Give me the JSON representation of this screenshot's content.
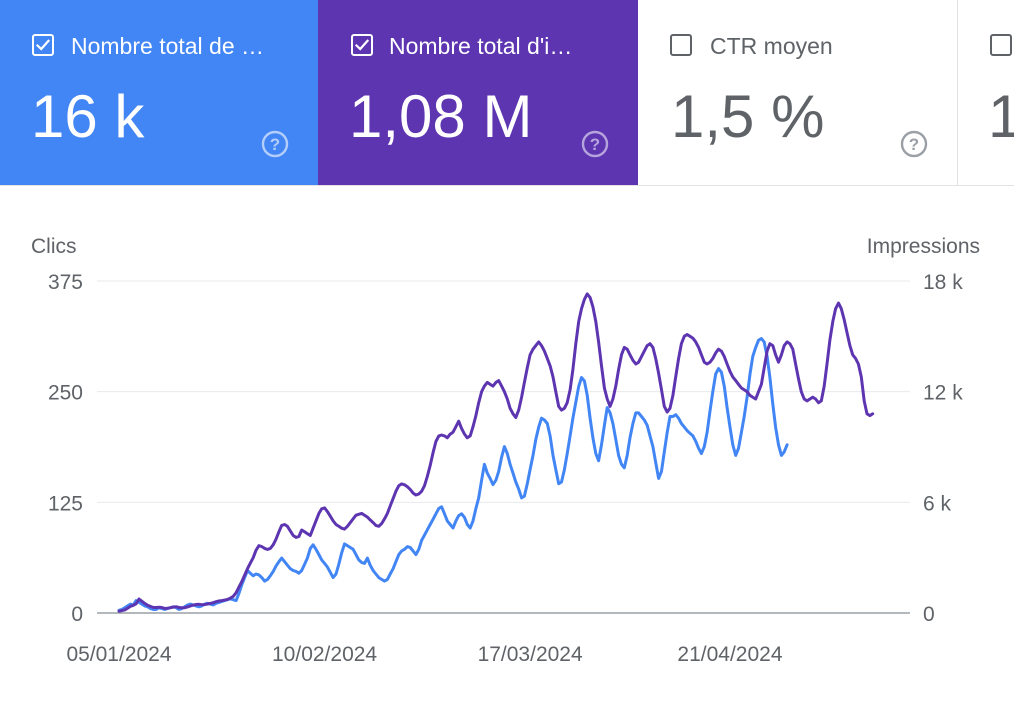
{
  "cards": [
    {
      "id": "clicks",
      "label": "Nombre total de …",
      "value": "16 k",
      "checked": true,
      "color": "#4285f4"
    },
    {
      "id": "impressions",
      "label": "Nombre total d'i…",
      "value": "1,08 M",
      "checked": true,
      "color": "#5e35b1"
    },
    {
      "id": "ctr",
      "label": "CTR moyen",
      "value": "1,5 %",
      "checked": false,
      "color": "#ffffff"
    },
    {
      "id": "position",
      "label": "",
      "value": "1",
      "checked": false,
      "color": "#ffffff"
    }
  ],
  "chart_data": {
    "type": "line",
    "left_axis_title": "Clics",
    "right_axis_title": "Impressions",
    "y_left": {
      "range": [
        0,
        375
      ],
      "ticks": [
        "0",
        "125",
        "250",
        "375"
      ],
      "tick_values": [
        0,
        125,
        250,
        375
      ]
    },
    "y_right": {
      "range": [
        0,
        18000
      ],
      "ticks": [
        "0",
        "6 k",
        "12 k",
        "18 k"
      ],
      "tick_values": [
        0,
        6000,
        12000,
        18000
      ]
    },
    "x_ticks": [
      {
        "label": "05/01/2024",
        "index": 0
      },
      {
        "label": "10/02/2024",
        "index": 36
      },
      {
        "label": "17/03/2024",
        "index": 72
      },
      {
        "label": "21/04/2024",
        "index": 107
      }
    ],
    "grid": true,
    "series": [
      {
        "axis": "left",
        "color": "#4285f4",
        "values": [
          3,
          4,
          6,
          8,
          10,
          9,
          14,
          12,
          10,
          8,
          7,
          5,
          4,
          4,
          6,
          5,
          4,
          5,
          6,
          7,
          6,
          4,
          5,
          7,
          9,
          10,
          9,
          8,
          7,
          8,
          10,
          11,
          10,
          9,
          11,
          12,
          13,
          14,
          15,
          16,
          15,
          14,
          22,
          32,
          40,
          48,
          45,
          42,
          44,
          43,
          40,
          36,
          38,
          42,
          47,
          53,
          58,
          62,
          58,
          54,
          50,
          48,
          47,
          45,
          48,
          55,
          62,
          73,
          77,
          72,
          66,
          60,
          56,
          52,
          46,
          40,
          44,
          55,
          68,
          78,
          76,
          74,
          72,
          66,
          60,
          57,
          56,
          62,
          54,
          48,
          44,
          40,
          38,
          36,
          38,
          44,
          50,
          58,
          66,
          70,
          72,
          75,
          74,
          70,
          66,
          72,
          82,
          88,
          94,
          100,
          106,
          112,
          118,
          120,
          112,
          104,
          100,
          96,
          104,
          110,
          112,
          108,
          100,
          96,
          104,
          118,
          130,
          150,
          168,
          158,
          152,
          145,
          150,
          160,
          176,
          188,
          180,
          168,
          158,
          148,
          140,
          130,
          132,
          146,
          162,
          178,
          196,
          210,
          220,
          218,
          214,
          200,
          178,
          162,
          146,
          148,
          162,
          180,
          200,
          220,
          238,
          256,
          266,
          262,
          246,
          220,
          198,
          180,
          172,
          190,
          212,
          232,
          226,
          214,
          196,
          178,
          168,
          164,
          178,
          198,
          214,
          226,
          226,
          222,
          218,
          212,
          200,
          188,
          170,
          152,
          160,
          182,
          204,
          222,
          222,
          224,
          220,
          214,
          210,
          206,
          203,
          200,
          194,
          186,
          180,
          188,
          204,
          228,
          250,
          270,
          276,
          272,
          256,
          232,
          210,
          190,
          178,
          186,
          204,
          222,
          244,
          270,
          290,
          300,
          308,
          310,
          306,
          290,
          266,
          236,
          210,
          190,
          178,
          182,
          190
        ],
        "step": 0.5
      },
      {
        "axis": "right",
        "color": "#5e35b1",
        "values": [
          100,
          130,
          170,
          260,
          360,
          420,
          500,
          760,
          640,
          520,
          420,
          360,
          300,
          300,
          310,
          300,
          250,
          260,
          290,
          320,
          340,
          300,
          280,
          290,
          330,
          380,
          430,
          460,
          470,
          450,
          460,
          490,
          520,
          560,
          610,
          650,
          670,
          700,
          740,
          800,
          900,
          1100,
          1400,
          1700,
          2050,
          2400,
          2700,
          3000,
          3400,
          3650,
          3600,
          3500,
          3450,
          3500,
          3700,
          4000,
          4400,
          4750,
          4800,
          4700,
          4450,
          4200,
          4100,
          4150,
          4500,
          4400,
          4300,
          4200,
          4600,
          5000,
          5400,
          5650,
          5700,
          5500,
          5250,
          5000,
          4800,
          4700,
          4600,
          4550,
          4700,
          4900,
          5100,
          5300,
          5350,
          5400,
          5300,
          5200,
          5050,
          4900,
          4750,
          4700,
          4850,
          5100,
          5400,
          5800,
          6200,
          6600,
          6900,
          7000,
          6950,
          6850,
          6700,
          6500,
          6400,
          6450,
          6600,
          6900,
          7400,
          8000,
          8700,
          9300,
          9600,
          9650,
          9600,
          9500,
          9700,
          9800,
          10100,
          10400,
          10000,
          9700,
          9500,
          9600,
          10100,
          10700,
          11400,
          12000,
          12300,
          12500,
          12400,
          12300,
          12500,
          12600,
          12300,
          12000,
          11600,
          11100,
          10800,
          10600,
          11000,
          11700,
          12500,
          13300,
          14000,
          14300,
          14500,
          14700,
          14500,
          14200,
          13800,
          13400,
          12800,
          12000,
          11200,
          11000,
          11100,
          11400,
          12100,
          13200,
          14600,
          15800,
          16500,
          17000,
          17300,
          17100,
          16600,
          15800,
          14700,
          13400,
          12200,
          11600,
          11200,
          11600,
          12300,
          13200,
          14000,
          14400,
          14300,
          14000,
          13700,
          13500,
          13600,
          13900,
          14200,
          14500,
          14600,
          14400,
          13800,
          13000,
          12100,
          11200,
          10900,
          11100,
          11800,
          12800,
          13800,
          14600,
          15000,
          15100,
          15000,
          14900,
          14700,
          14400,
          14000,
          13600,
          13500,
          13600,
          13800,
          14100,
          14300,
          14200,
          13900,
          13500,
          13100,
          12800,
          12600,
          12400,
          12200,
          12100,
          12000,
          11800,
          11700,
          11600,
          12000,
          12400,
          13300,
          14200,
          14600,
          14500,
          14000,
          13600,
          14000,
          14500,
          14700,
          14600,
          14300,
          13500,
          12700,
          12000,
          11600,
          11500,
          11600,
          11700,
          11600,
          11400,
          11500,
          12300,
          13500,
          14800,
          15800,
          16500,
          16800,
          16500,
          15900,
          15200,
          14500,
          14000,
          13800,
          13500,
          12800,
          11500,
          10800,
          10700,
          10800
        ],
        "step": 0.5
      }
    ]
  }
}
